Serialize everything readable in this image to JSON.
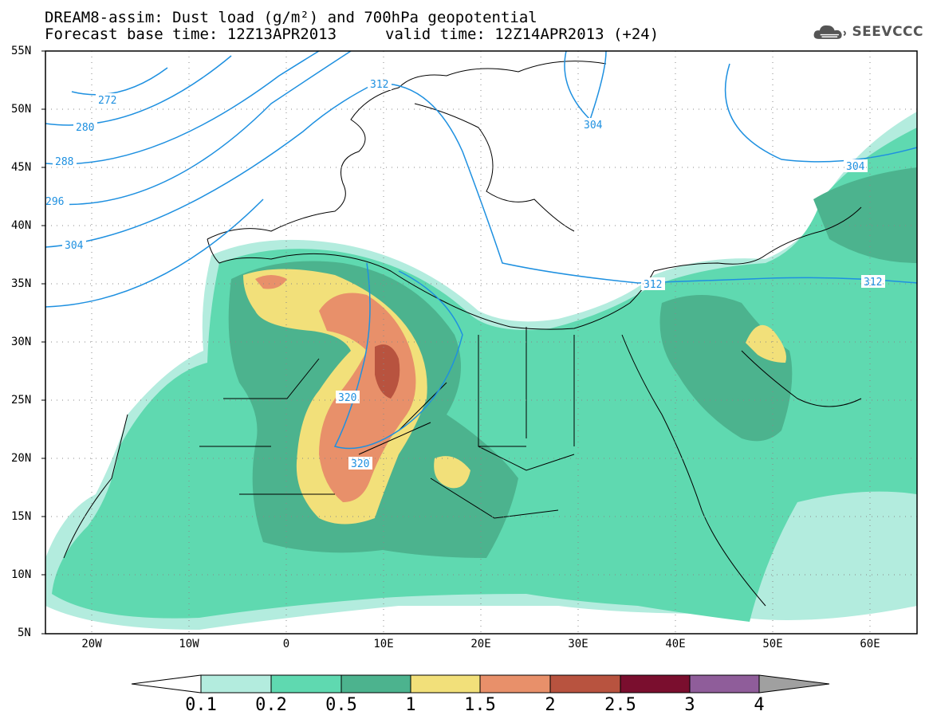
{
  "header": {
    "title_line1": "DREAM8-assim: Dust load (g/m²) and 700hPa geopotential",
    "title_line2": "Forecast base time: 12Z13APR2013",
    "valid_time": "valid time: 12Z14APR2013 (+24)",
    "logo_text": "SEEVCCC",
    "logo_icon": "cloud-logo-icon"
  },
  "map": {
    "region": "North Africa, Europe and Middle East",
    "lat_labels": [
      "55N",
      "50N",
      "45N",
      "40N",
      "35N",
      "30N",
      "25N",
      "20N",
      "15N",
      "10N",
      "5N"
    ],
    "lon_labels": [
      "20W",
      "10W",
      "0",
      "10E",
      "20E",
      "30E",
      "40E",
      "50E",
      "60E"
    ],
    "lat_range": [
      5,
      55
    ],
    "lon_range": [
      -25,
      65
    ],
    "contour_color": "#1e90e0",
    "contour_labels": [
      "272",
      "280",
      "288",
      "296",
      "304",
      "312",
      "304",
      "312",
      "312",
      "320",
      "320",
      "304"
    ]
  },
  "legend": {
    "levels": [
      "0.1",
      "0.2",
      "0.5",
      "1",
      "1.5",
      "2",
      "2.5",
      "3",
      "4"
    ],
    "colors": [
      "#b3ecde",
      "#5fd9b0",
      "#4cb38e",
      "#f2e07a",
      "#e8906a",
      "#b8533f",
      "#7a0e2e",
      "#8f5d9a",
      "#a0a0a0"
    ],
    "under_color": "#ffffff"
  }
}
